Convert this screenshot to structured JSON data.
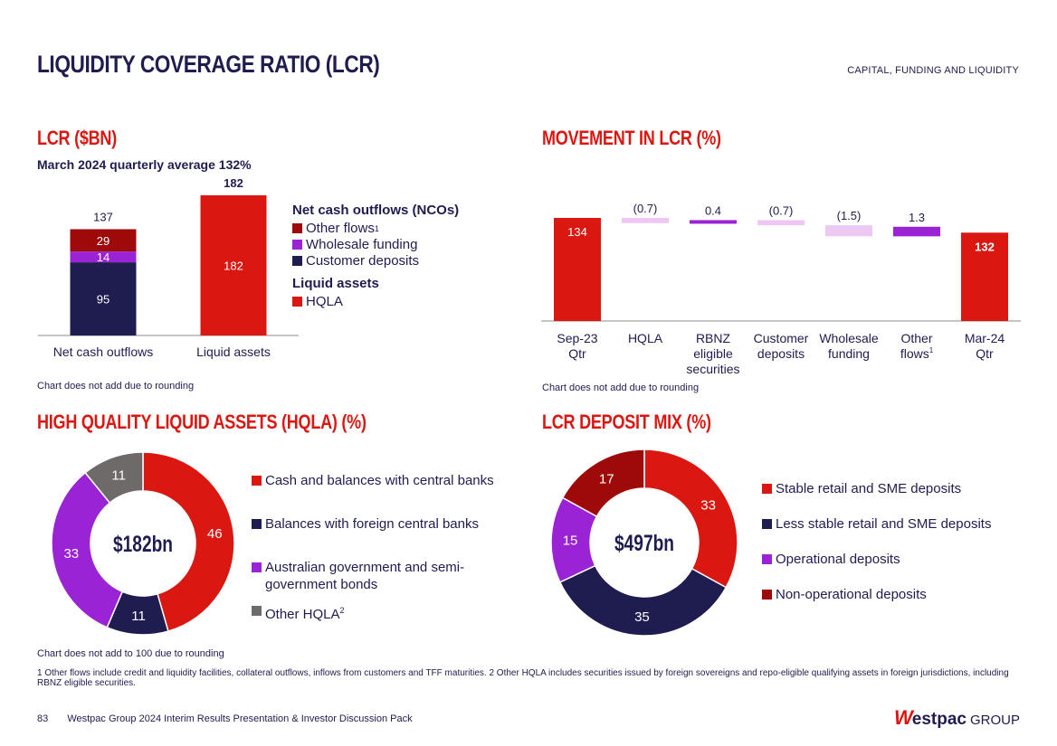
{
  "header": {
    "title": "LIQUIDITY COVERAGE RATIO (LCR)",
    "section": "CAPITAL, FUNDING AND LIQUIDITY"
  },
  "colors": {
    "red": "#da1710",
    "navy": "#1f1c4f",
    "purple": "#9a23d6",
    "lilac": "#ecc8f2",
    "darkred": "#9e0a0a",
    "grey": "#6e6a6a"
  },
  "lcr_bn": {
    "title": "LCR ($BN)",
    "subtitle": "March 2024 quarterly average 132%",
    "note": "Chart does not add due to rounding",
    "legend_nco_title": "Net cash outflows (NCOs)",
    "legend_nco": [
      {
        "label": "Other flows",
        "sup": "1",
        "color": "#9e0a0a"
      },
      {
        "label": "Wholesale funding",
        "sup": "",
        "color": "#9a23d6"
      },
      {
        "label": "Customer deposits",
        "sup": "",
        "color": "#1f1c4f"
      }
    ],
    "legend_la_title": "Liquid assets",
    "legend_la": [
      {
        "label": "HQLA",
        "color": "#da1710"
      }
    ]
  },
  "movement": {
    "title": "MOVEMENT IN LCR (%)",
    "note": "Chart does not add due to rounding"
  },
  "hqla": {
    "title": "HIGH QUALITY LIQUID ASSETS (HQLA) (%)",
    "center": "$182bn",
    "legend": [
      {
        "label": "Cash and balances with central banks",
        "sup": "",
        "color": "#da1710"
      },
      {
        "label": "Balances with foreign central banks",
        "sup": "",
        "color": "#1f1c4f"
      },
      {
        "label": "Australian government and semi-government bonds",
        "sup": "",
        "color": "#9a23d6"
      },
      {
        "label": "Other HQLA",
        "sup": "2",
        "color": "#6e6a6a"
      }
    ]
  },
  "deposit_mix": {
    "title": "LCR DEPOSIT MIX (%)",
    "center": "$497bn",
    "legend": [
      {
        "label": "Stable retail and SME deposits",
        "color": "#da1710"
      },
      {
        "label": "Less stable retail and SME deposits",
        "color": "#1f1c4f"
      },
      {
        "label": "Operational deposits",
        "color": "#9a23d6"
      },
      {
        "label": "Non-operational deposits",
        "color": "#9e0a0a"
      }
    ]
  },
  "bottom_note": "Chart does not add to 100 due to rounding",
  "footnote": "1 Other flows include credit and liquidity facilities, collateral outflows, inflows from customers and TFF maturities. 2 Other HQLA includes securities issued by foreign sovereigns and repo-eligible qualifying assets in foreign jurisdictions, including RBNZ eligible securities.",
  "footer": {
    "page": "83",
    "text": "Westpac Group 2024 Interim Results Presentation & Investor Discussion Pack",
    "logo_w": "W",
    "logo_text": "estpac",
    "logo_group": "GROUP"
  },
  "chart_data": [
    {
      "type": "bar",
      "id": "lcr_bn",
      "stacked": true,
      "categories": [
        "Net cash outflows",
        "Liquid assets"
      ],
      "totals": [
        137,
        182
      ],
      "series": [
        {
          "name": "Customer deposits",
          "values": [
            95,
            0
          ],
          "labels": [
            "95",
            ""
          ],
          "color": "#1f1c4f"
        },
        {
          "name": "Wholesale funding",
          "values": [
            14,
            0
          ],
          "labels": [
            "14",
            ""
          ],
          "color": "#9a23d6"
        },
        {
          "name": "Other flows",
          "values": [
            29,
            0
          ],
          "labels": [
            "29",
            ""
          ],
          "color": "#9e0a0a"
        },
        {
          "name": "HQLA",
          "values": [
            0,
            182
          ],
          "labels": [
            "",
            "182"
          ],
          "color": "#da1710"
        }
      ],
      "ylim": [
        0,
        182
      ]
    },
    {
      "type": "bar",
      "id": "movement",
      "variant": "waterfall",
      "categories": [
        "Sep-23 Qtr",
        "HQLA",
        "RBNZ eligible securities",
        "Customer deposits",
        "Wholesale funding",
        "Other flows",
        "Mar-24 Qtr"
      ],
      "category_lines": [
        [
          "Sep-23",
          "Qtr"
        ],
        [
          "HQLA"
        ],
        [
          "RBNZ",
          "eligible",
          "securities"
        ],
        [
          "Customer",
          "deposits"
        ],
        [
          "Wholesale",
          "funding"
        ],
        [
          "Other",
          "flows"
        ],
        [
          "Mar-24",
          "Qtr"
        ]
      ],
      "category_sup": [
        "",
        "",
        "",
        "",
        "",
        "1",
        ""
      ],
      "values": [
        134,
        -0.7,
        0.4,
        -0.7,
        -1.5,
        1.3,
        132
      ],
      "labels": [
        "134",
        "(0.7)",
        "0.4",
        "(0.7)",
        "(1.5)",
        "1.3",
        "132"
      ],
      "kinds": [
        "total",
        "delta",
        "delta",
        "delta",
        "delta",
        "delta",
        "total"
      ]
    },
    {
      "type": "pie",
      "id": "hqla",
      "donut": true,
      "labels": [
        "Cash and balances with central banks",
        "Balances with foreign central banks",
        "Australian government and semi-government bonds",
        "Other HQLA"
      ],
      "values": [
        46,
        11,
        33,
        11
      ],
      "colors": [
        "#da1710",
        "#1f1c4f",
        "#9a23d6",
        "#6e6a6a"
      ]
    },
    {
      "type": "pie",
      "id": "deposit_mix",
      "donut": true,
      "labels": [
        "Stable retail and SME deposits",
        "Less stable retail and SME deposits",
        "Operational deposits",
        "Non-operational deposits"
      ],
      "values": [
        33,
        35,
        15,
        17
      ],
      "colors": [
        "#da1710",
        "#1f1c4f",
        "#9a23d6",
        "#9e0a0a"
      ]
    }
  ]
}
